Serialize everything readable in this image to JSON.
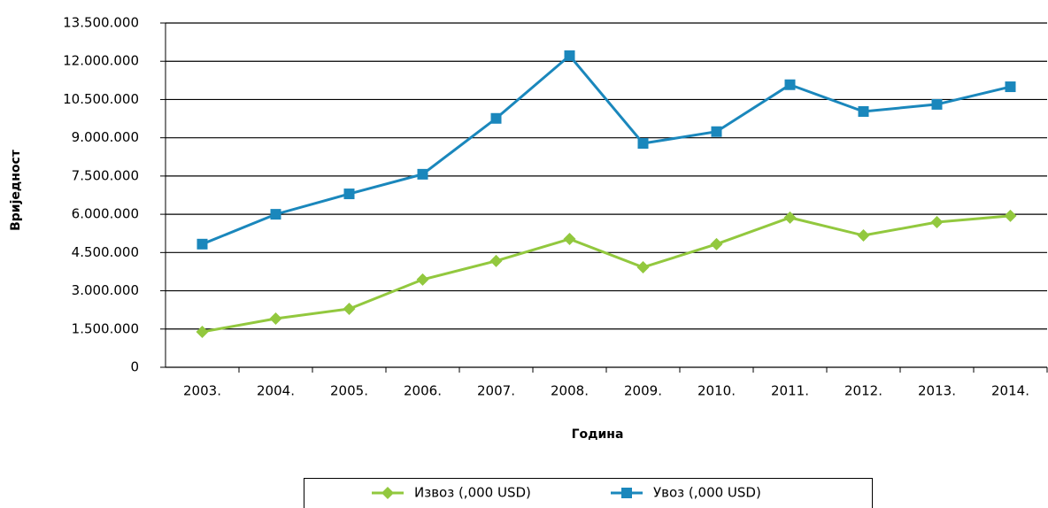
{
  "chart_data": {
    "type": "line",
    "x_label": "Година",
    "y_label": "Вриједност",
    "categories": [
      "2003.",
      "2004.",
      "2005.",
      "2006.",
      "2007.",
      "2008.",
      "2009.",
      "2010.",
      "2011.",
      "2012.",
      "2013.",
      "2014."
    ],
    "series": [
      {
        "name": "Извоз (,000 USD)",
        "color": "#92c83e",
        "marker": "diamond",
        "values": [
          1390000,
          1910000,
          2290000,
          3440000,
          4170000,
          5030000,
          3920000,
          4830000,
          5870000,
          5170000,
          5690000,
          5940000
        ]
      },
      {
        "name": "Увоз (,000 USD)",
        "color": "#1a87bc",
        "marker": "square",
        "values": [
          4830000,
          6000000,
          6800000,
          7570000,
          9760000,
          12220000,
          8780000,
          9240000,
          11080000,
          10030000,
          10310000,
          11000000
        ]
      }
    ],
    "ylim": [
      0,
      13500000
    ],
    "yticks": [
      0,
      {
        "value": 1500000,
        "label": "1.500.000"
      },
      {
        "value": 3000000,
        "label": "3.000.000"
      },
      {
        "value": 4500000,
        "label": "4.500.000"
      },
      {
        "value": 6000000,
        "label": "6.000.000"
      },
      {
        "value": 7500000,
        "label": "7.500.000"
      },
      {
        "value": 9000000,
        "label": "9.000.000"
      },
      {
        "value": 10500000,
        "label": "10.500.000"
      },
      {
        "value": 12000000,
        "label": "12.000.000"
      },
      {
        "value": 13500000,
        "label": "13.500.000"
      }
    ],
    "grid": true,
    "legend": "bottom"
  }
}
